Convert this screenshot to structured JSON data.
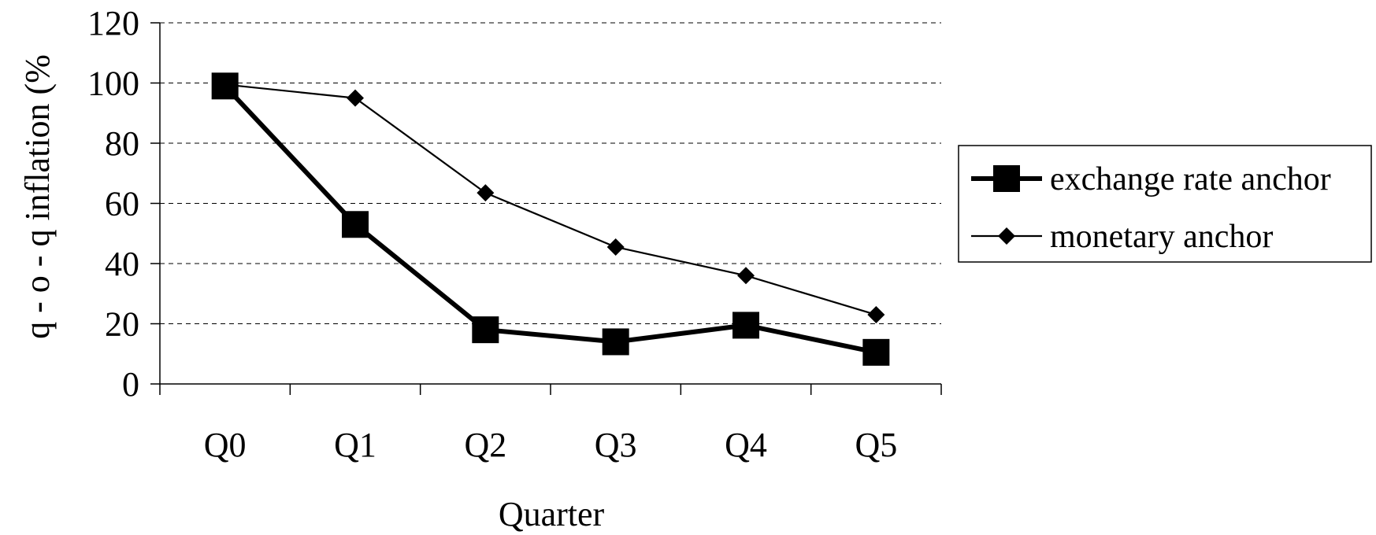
{
  "colors": {
    "background": "#ffffff",
    "axis": "#000000",
    "gridline": "#000000",
    "series_line": "#000000"
  },
  "chart_data": {
    "type": "line",
    "title": "",
    "xlabel": "Quarter",
    "ylabel": "q - o - q inflation (%",
    "categories": [
      "Q0",
      "Q1",
      "Q2",
      "Q3",
      "Q4",
      "Q5"
    ],
    "ylim": [
      0,
      120
    ],
    "yticks": [
      0,
      20,
      40,
      60,
      80,
      100,
      120
    ],
    "grid": "horizontal-dashed",
    "legend_position": "right",
    "series": [
      {
        "name": "exchange rate anchor",
        "marker": "square",
        "line_style": "thick",
        "values": [
          99,
          53,
          18,
          14,
          19.5,
          10.5
        ]
      },
      {
        "name": "monetary anchor",
        "marker": "diamond",
        "line_style": "thin",
        "values": [
          99.5,
          95,
          63.5,
          45.5,
          36,
          23
        ]
      }
    ]
  }
}
